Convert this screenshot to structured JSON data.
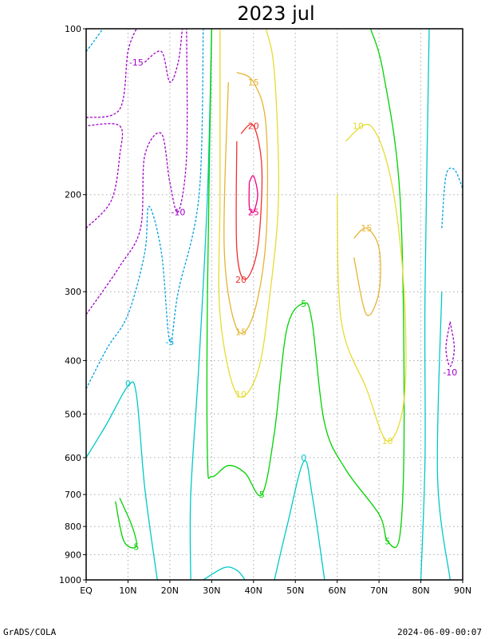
{
  "chart_data": {
    "type": "contour",
    "title": "2023  jul",
    "x_ticks": [
      "EQ",
      "10N",
      "20N",
      "30N",
      "40N",
      "50N",
      "60N",
      "70N",
      "80N",
      "90N"
    ],
    "x_values": [
      0,
      10,
      20,
      30,
      40,
      50,
      60,
      70,
      80,
      90
    ],
    "y_ticks": [
      "100",
      "200",
      "300",
      "400",
      "500",
      "600",
      "700",
      "800",
      "900",
      "1000"
    ],
    "y_values": [
      100,
      200,
      300,
      400,
      500,
      600,
      700,
      800,
      900,
      1000
    ],
    "xlim": [
      0,
      90
    ],
    "ylim": [
      1000,
      100
    ],
    "y_scale": "log",
    "grid": true,
    "contour_levels": [
      -15,
      -10,
      -5,
      0,
      5,
      10,
      15,
      20,
      25
    ],
    "contour_labels": [
      {
        "text": "-15",
        "lat": 12,
        "p": 115
      },
      {
        "text": "-10",
        "lat": 22,
        "p": 215
      },
      {
        "text": "-5",
        "lat": 20,
        "p": 370
      },
      {
        "text": "0",
        "lat": 10,
        "p": 440
      },
      {
        "text": "5",
        "lat": 12,
        "p": 870
      },
      {
        "text": "15",
        "lat": 40,
        "p": 125
      },
      {
        "text": "20",
        "lat": 40,
        "p": 150
      },
      {
        "text": "25",
        "lat": 40,
        "p": 215
      },
      {
        "text": "20",
        "lat": 37,
        "p": 285
      },
      {
        "text": "15",
        "lat": 37,
        "p": 355
      },
      {
        "text": "10",
        "lat": 37,
        "p": 460
      },
      {
        "text": "5",
        "lat": 52,
        "p": 315
      },
      {
        "text": "0",
        "lat": 52,
        "p": 600
      },
      {
        "text": "5",
        "lat": 42,
        "p": 700
      },
      {
        "text": "10",
        "lat": 65,
        "p": 150
      },
      {
        "text": "15",
        "lat": 67,
        "p": 230
      },
      {
        "text": "10",
        "lat": 72,
        "p": 560
      },
      {
        "text": "5",
        "lat": 72,
        "p": 850
      },
      {
        "text": "-10",
        "lat": 87,
        "p": 420
      }
    ],
    "contours": [
      {
        "level": -15,
        "color": "#a000c8",
        "dashed": true,
        "points": [
          [
            0,
            145
          ],
          [
            8,
            140
          ],
          [
            10,
            110
          ],
          [
            12,
            100
          ]
        ]
      },
      {
        "level": -15,
        "color": "#a000c8",
        "dashed": true,
        "points": [
          [
            14,
            115
          ],
          [
            18,
            110
          ],
          [
            20,
            125
          ],
          [
            22,
            115
          ],
          [
            23,
            100
          ]
        ]
      },
      {
        "level": -10,
        "color": "#a000c8",
        "dashed": true,
        "points": [
          [
            0,
            230
          ],
          [
            6,
            205
          ],
          [
            8,
            170
          ],
          [
            8,
            150
          ],
          [
            0,
            150
          ]
        ]
      },
      {
        "level": -10,
        "color": "#a000c8",
        "dashed": true,
        "points": [
          [
            0,
            330
          ],
          [
            8,
            270
          ],
          [
            13,
            230
          ],
          [
            14,
            170
          ],
          [
            18,
            155
          ],
          [
            20,
            190
          ],
          [
            22,
            215
          ],
          [
            24,
            170
          ],
          [
            24,
            100
          ]
        ]
      },
      {
        "level": -10,
        "color": "#a000c8",
        "dashed": true,
        "points": [
          [
            87,
            340
          ],
          [
            88,
            380
          ],
          [
            87,
            410
          ],
          [
            86,
            380
          ],
          [
            87,
            340
          ]
        ]
      },
      {
        "level": -5,
        "color": "#00a0e0",
        "dashed": true,
        "points": [
          [
            0,
            450
          ],
          [
            5,
            380
          ],
          [
            10,
            330
          ],
          [
            14,
            255
          ],
          [
            15,
            210
          ],
          [
            18,
            255
          ],
          [
            20,
            370
          ],
          [
            22,
            300
          ],
          [
            27,
            200
          ],
          [
            28,
            100
          ]
        ]
      },
      {
        "level": -5,
        "color": "#00a0e0",
        "dashed": true,
        "points": [
          [
            0,
            110
          ],
          [
            2,
            105
          ],
          [
            4,
            100
          ]
        ]
      },
      {
        "level": -5,
        "color": "#00a0e0",
        "dashed": true,
        "points": [
          [
            85,
            230
          ],
          [
            86,
            185
          ],
          [
            88,
            180
          ],
          [
            90,
            195
          ]
        ]
      },
      {
        "level": 0,
        "color": "#00c8c8",
        "dashed": false,
        "points": [
          [
            0,
            600
          ],
          [
            5,
            520
          ],
          [
            10,
            445
          ],
          [
            12,
            460
          ],
          [
            14,
            680
          ],
          [
            17,
            1000
          ]
        ]
      },
      {
        "level": 0,
        "color": "#00c8c8",
        "dashed": false,
        "points": [
          [
            25,
            1000
          ],
          [
            25,
            700
          ],
          [
            27,
            400
          ],
          [
            29,
            200
          ],
          [
            30,
            100
          ]
        ]
      },
      {
        "level": 0,
        "color": "#00c8c8",
        "dashed": false,
        "points": [
          [
            28,
            1000
          ],
          [
            33,
            950
          ],
          [
            36,
            960
          ],
          [
            38,
            1000
          ]
        ]
      },
      {
        "level": 0,
        "color": "#00c8c8",
        "dashed": false,
        "points": [
          [
            45,
            1000
          ],
          [
            48,
            800
          ],
          [
            52,
            610
          ],
          [
            54,
            700
          ],
          [
            57,
            1000
          ]
        ]
      },
      {
        "level": 0,
        "color": "#00c8c8",
        "dashed": false,
        "points": [
          [
            80,
            1000
          ],
          [
            81,
            600
          ],
          [
            81,
            300
          ],
          [
            82,
            100
          ]
        ]
      },
      {
        "level": 0,
        "color": "#00c8c8",
        "dashed": false,
        "points": [
          [
            87,
            1000
          ],
          [
            84,
            650
          ],
          [
            85,
            300
          ]
        ]
      },
      {
        "level": 5,
        "color": "#00d200",
        "dashed": false,
        "points": [
          [
            7,
            720
          ],
          [
            9,
            850
          ],
          [
            12,
            870
          ],
          [
            11,
            800
          ],
          [
            8,
            710
          ]
        ]
      },
      {
        "level": 5,
        "color": "#00d200",
        "dashed": false,
        "points": [
          [
            30,
            100
          ],
          [
            29,
            300
          ],
          [
            29,
            600
          ],
          [
            30,
            650
          ],
          [
            34,
            620
          ],
          [
            38,
            640
          ],
          [
            42,
            700
          ],
          [
            45,
            540
          ],
          [
            48,
            350
          ],
          [
            52,
            315
          ],
          [
            54,
            340
          ],
          [
            57,
            520
          ],
          [
            62,
            630
          ],
          [
            70,
            760
          ],
          [
            72,
            850
          ],
          [
            75,
            830
          ],
          [
            76,
            500
          ],
          [
            75,
            200
          ],
          [
            71,
            120
          ],
          [
            68,
            100
          ]
        ]
      },
      {
        "level": 10,
        "color": "#e6dc32",
        "dashed": false,
        "points": [
          [
            32,
            100
          ],
          [
            32,
            200
          ],
          [
            32,
            330
          ],
          [
            36,
            460
          ],
          [
            41,
            420
          ],
          [
            44,
            300
          ],
          [
            46,
            200
          ],
          [
            45,
            120
          ],
          [
            43,
            100
          ]
        ]
      },
      {
        "level": 10,
        "color": "#e6dc32",
        "dashed": false,
        "points": [
          [
            60,
            200
          ],
          [
            61,
            340
          ],
          [
            67,
            450
          ],
          [
            72,
            560
          ],
          [
            76,
            470
          ],
          [
            76,
            300
          ],
          [
            73,
            190
          ],
          [
            68,
            150
          ],
          [
            62,
            160
          ]
        ]
      },
      {
        "level": 15,
        "color": "#e6b432",
        "dashed": false,
        "points": [
          [
            34,
            125
          ],
          [
            33,
            250
          ],
          [
            36,
            350
          ],
          [
            40,
            330
          ],
          [
            43,
            240
          ],
          [
            43,
            150
          ],
          [
            40,
            125
          ],
          [
            36,
            120
          ]
        ]
      },
      {
        "level": 15,
        "color": "#e6b432",
        "dashed": false,
        "points": [
          [
            64,
            260
          ],
          [
            67,
            330
          ],
          [
            70,
            300
          ],
          [
            70,
            250
          ],
          [
            67,
            230
          ],
          [
            64,
            240
          ]
        ]
      },
      {
        "level": 20,
        "color": "#f03232",
        "dashed": false,
        "points": [
          [
            36,
            160
          ],
          [
            36,
            250
          ],
          [
            38,
            285
          ],
          [
            41,
            250
          ],
          [
            42,
            180
          ],
          [
            40,
            150
          ],
          [
            37,
            155
          ]
        ]
      },
      {
        "level": 25,
        "color": "#f00082",
        "dashed": false,
        "points": [
          [
            39,
            190
          ],
          [
            39,
            210
          ],
          [
            40,
            215
          ],
          [
            41,
            200
          ],
          [
            40,
            185
          ],
          [
            39,
            190
          ]
        ]
      }
    ]
  },
  "footer": {
    "left": "GrADS/COLA",
    "right": "2024-06-09-00:07"
  }
}
